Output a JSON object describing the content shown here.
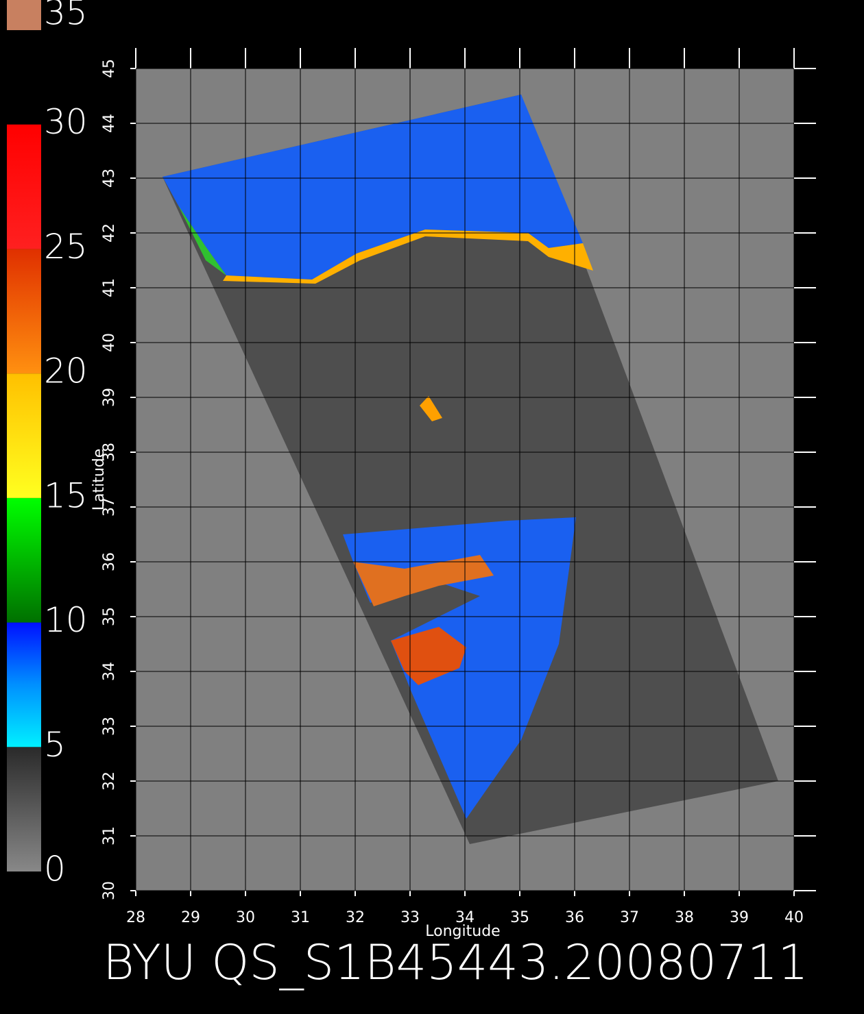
{
  "map": {
    "title": "BYU QS_S1B45443.20080711",
    "xlabel": "Longitude",
    "ylabel": "Latitude",
    "xlim": [
      28,
      40
    ],
    "ylim": [
      30,
      45
    ],
    "xticks": [
      28,
      29,
      30,
      31,
      32,
      33,
      34,
      35,
      36,
      37,
      38,
      39,
      40
    ],
    "yticks": [
      30,
      31,
      32,
      33,
      34,
      35,
      36,
      37,
      38,
      39,
      40,
      41,
      42,
      43,
      44,
      45
    ],
    "grid": true
  },
  "colorbar": {
    "range": [
      0,
      35
    ],
    "ticks": [
      0,
      5,
      10,
      15,
      20,
      25,
      30,
      35
    ]
  }
}
